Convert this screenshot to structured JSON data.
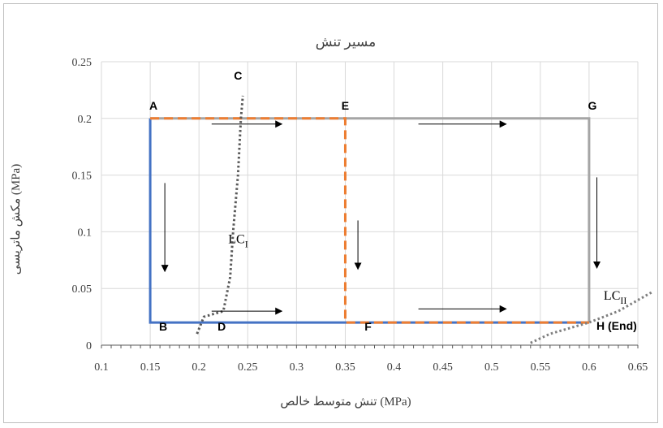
{
  "chart_data": {
    "type": "line",
    "title": "مسیر تنش",
    "xlabel": "تنش متوسط خالص (MPa)",
    "ylabel": "مکش ماتریسی (MPa)",
    "xlim": [
      0.1,
      0.65
    ],
    "ylim": [
      0,
      0.25
    ],
    "x_ticks": [
      "0.1",
      "0.15",
      "0.2",
      "0.25",
      "0.3",
      "0.35",
      "0.4",
      "0.45",
      "0.5",
      "0.55",
      "0.6",
      "0.65"
    ],
    "y_ticks": [
      "0",
      "0.05",
      "0.1",
      "0.15",
      "0.2",
      "0.25"
    ],
    "grid": true,
    "series": [
      {
        "points": [
          [
            0.15,
            0.2
          ],
          [
            0.15,
            0.02
          ],
          [
            0.6,
            0.02
          ]
        ],
        "color": "#4472c4",
        "style": "solid"
      },
      {
        "points": [
          [
            0.15,
            0.2
          ],
          [
            0.6,
            0.2
          ],
          [
            0.6,
            0.02
          ]
        ],
        "color": "#a5a5a5",
        "style": "solid"
      },
      {
        "points": [
          [
            0.15,
            0.2
          ],
          [
            0.35,
            0.2
          ],
          [
            0.35,
            0.02
          ],
          [
            0.6,
            0.02
          ]
        ],
        "color": "#ed7d31",
        "style": "dashed"
      },
      {
        "points": [
          [
            0.198,
            0.01
          ],
          [
            0.205,
            0.025
          ],
          [
            0.225,
            0.03
          ],
          [
            0.232,
            0.06
          ],
          [
            0.235,
            0.1
          ],
          [
            0.24,
            0.15
          ],
          [
            0.243,
            0.2
          ],
          [
            0.245,
            0.22
          ]
        ],
        "color": "#595959",
        "style": "dotted"
      },
      {
        "points": [
          [
            0.54,
            0.002
          ],
          [
            0.56,
            0.01
          ],
          [
            0.6,
            0.02
          ],
          [
            0.63,
            0.03
          ],
          [
            0.665,
            0.047
          ]
        ],
        "color": "#7f7f7f",
        "style": "dotted"
      }
    ],
    "point_labels": [
      {
        "text": "A",
        "x": 0.15,
        "y": 0.2
      },
      {
        "text": "B",
        "x": 0.15,
        "y": 0.02
      },
      {
        "text": "C",
        "x": 0.24,
        "y": 0.22
      },
      {
        "text": "D",
        "x": 0.21,
        "y": 0.02
      },
      {
        "text": "E",
        "x": 0.35,
        "y": 0.2
      },
      {
        "text": "F",
        "x": 0.36,
        "y": 0.02
      },
      {
        "text": "G",
        "x": 0.6,
        "y": 0.2
      },
      {
        "text": "H (End)",
        "x": 0.6,
        "y": 0.02
      }
    ],
    "curve_labels": [
      {
        "base": "LC",
        "sub": "I"
      },
      {
        "base": "LC",
        "sub": "II"
      }
    ],
    "arrows": [
      {
        "from": [
          0.213,
          0.195
        ],
        "to": [
          0.285,
          0.195
        ]
      },
      {
        "from": [
          0.213,
          0.03
        ],
        "to": [
          0.285,
          0.03
        ]
      },
      {
        "from": [
          0.165,
          0.143
        ],
        "to": [
          0.165,
          0.065
        ]
      },
      {
        "from": [
          0.425,
          0.195
        ],
        "to": [
          0.515,
          0.195
        ]
      },
      {
        "from": [
          0.425,
          0.032
        ],
        "to": [
          0.515,
          0.032
        ]
      },
      {
        "from": [
          0.363,
          0.11
        ],
        "to": [
          0.363,
          0.067
        ]
      },
      {
        "from": [
          0.608,
          0.148
        ],
        "to": [
          0.608,
          0.068
        ]
      }
    ]
  }
}
